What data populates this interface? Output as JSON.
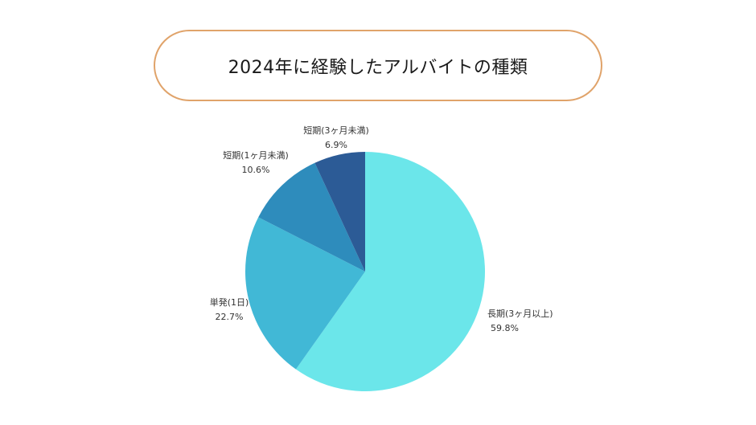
{
  "chart_data": {
    "type": "pie",
    "title": "2024年に経験したアルバイトの種類",
    "slices": [
      {
        "label": "長期(3ヶ月以上)",
        "value": 59.8,
        "value_label": "59.8%",
        "color": "#6be6ea"
      },
      {
        "label": "単発(1日)",
        "value": 22.7,
        "value_label": "22.7%",
        "color": "#41b8d6"
      },
      {
        "label": "短期(1ヶ月未満)",
        "value": 10.6,
        "value_label": "10.6%",
        "color": "#2e8cbc"
      },
      {
        "label": "短期(3ヶ月未満)",
        "value": 6.9,
        "value_label": "6.9%",
        "color": "#2c5b96"
      }
    ],
    "start_direction": "top",
    "order": "clockwise",
    "legend": "none"
  }
}
